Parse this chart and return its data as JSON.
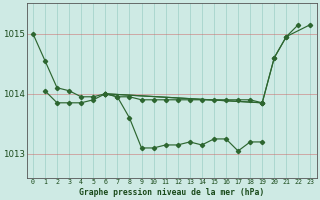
{
  "title": "Graphe pression niveau de la mer (hPa)",
  "background_color": "#ceeae4",
  "grid_color": "#9ecfc7",
  "line_color": "#2d6630",
  "ylim": [
    1012.6,
    1015.5
  ],
  "yticks": [
    1013,
    1014,
    1015
  ],
  "xlim": [
    -0.5,
    23.5
  ],
  "line1_x": [
    0,
    1,
    2,
    3,
    4,
    5,
    6
  ],
  "line1_y": [
    1015.0,
    1014.55,
    1014.1,
    1014.05,
    1013.95,
    1013.95,
    1014.0
  ],
  "line2_x": [
    1,
    2,
    3,
    4,
    5,
    6
  ],
  "line2_y": [
    1014.05,
    1013.85,
    1013.85,
    1013.85,
    1013.9,
    1014.0
  ],
  "line3_x": [
    6,
    7,
    8,
    9,
    10,
    11,
    12,
    13,
    14,
    15,
    16,
    17,
    18,
    19
  ],
  "line3_y": [
    1014.0,
    1013.95,
    1013.6,
    1013.1,
    1013.1,
    1013.15,
    1013.15,
    1013.2,
    1013.15,
    1013.25,
    1013.25,
    1013.05,
    1013.2,
    1013.2
  ],
  "line4_x": [
    6,
    7,
    8,
    9,
    10,
    11,
    12,
    13,
    14,
    15,
    16,
    17,
    18,
    19
  ],
  "line4_y": [
    1014.0,
    1013.95,
    1013.95,
    1013.9,
    1013.9,
    1013.9,
    1013.9,
    1013.9,
    1013.9,
    1013.9,
    1013.9,
    1013.9,
    1013.9,
    1013.85
  ],
  "line5_x": [
    6,
    19,
    20,
    21,
    22
  ],
  "line5_y": [
    1014.0,
    1013.85,
    1014.6,
    1014.95,
    1015.15
  ],
  "line6_x": [
    6,
    19,
    20,
    21,
    23
  ],
  "line6_y": [
    1014.0,
    1013.85,
    1014.6,
    1014.95,
    1015.15
  ],
  "marker": "D",
  "markersize": 2.2,
  "linewidth": 0.85
}
